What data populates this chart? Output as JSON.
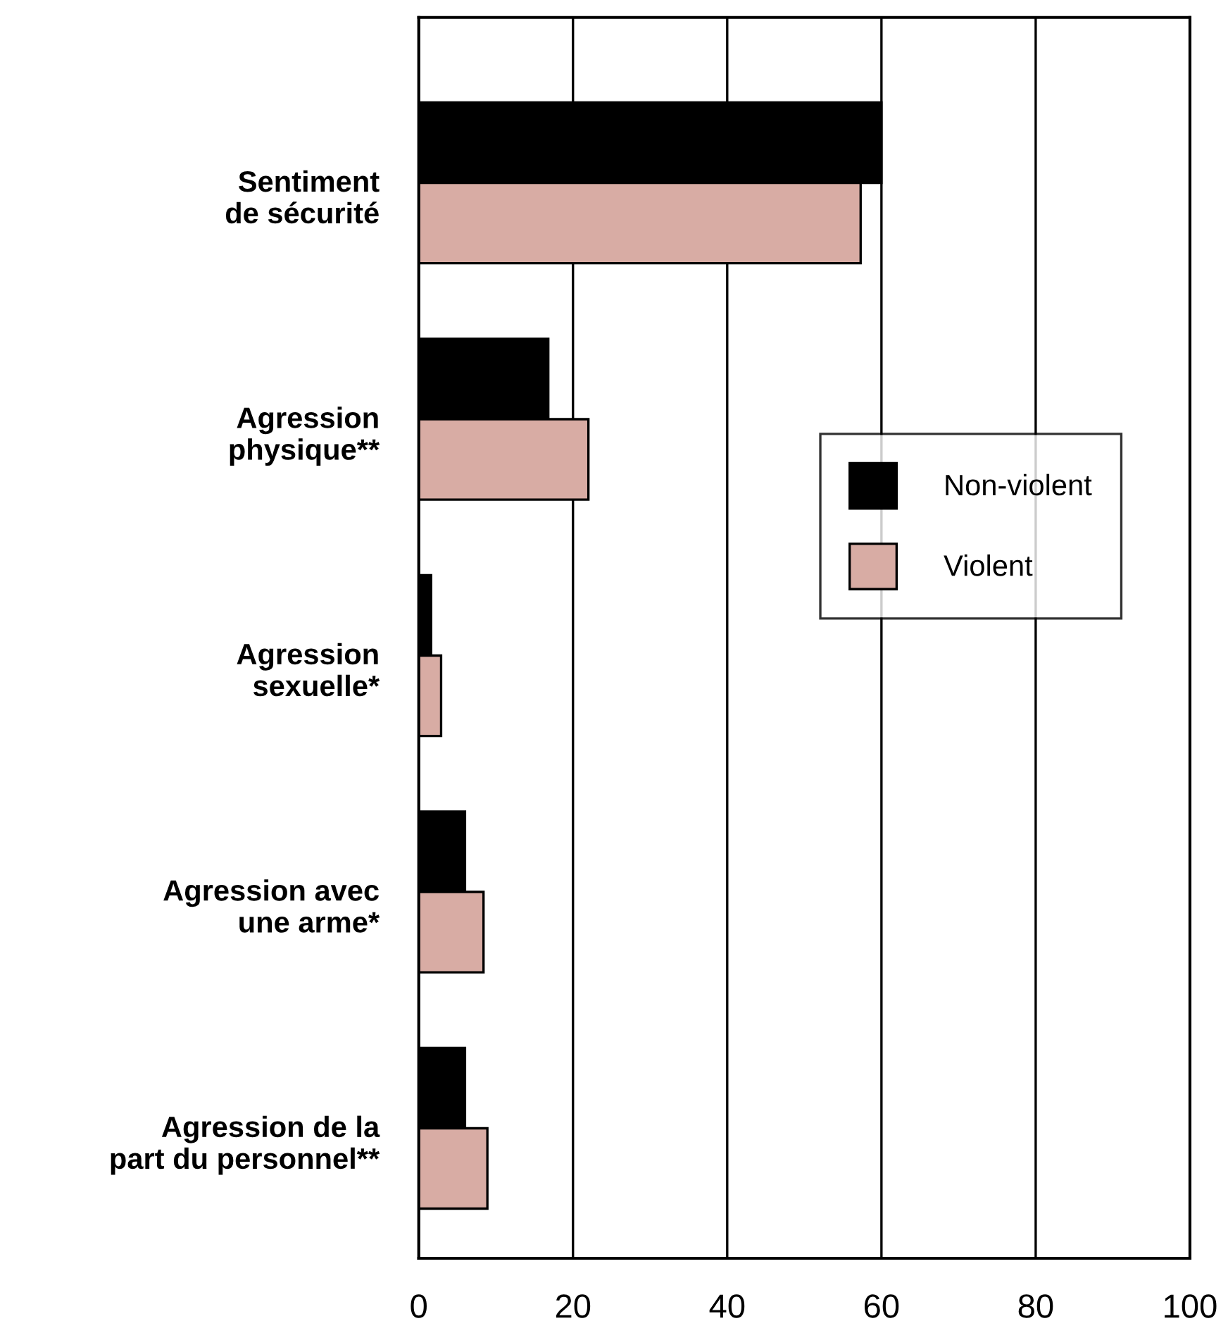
{
  "chart_data": {
    "type": "bar",
    "orientation": "horizontal",
    "categories": [
      "Sentiment\nde sécurité",
      "Agression\nphysique**",
      "Agression\nsexuelle*",
      "Agression avec\nune arme*",
      "Agression de la\npart du personnel**"
    ],
    "series": [
      {
        "name": "Non-violent",
        "color": "#000000",
        "values": [
          60,
          16.8,
          1.6,
          6,
          6
        ]
      },
      {
        "name": "Violent",
        "color": "#d8aca4",
        "values": [
          57.3,
          22,
          2.9,
          8.4,
          8.9
        ]
      }
    ],
    "xlim": [
      0,
      100
    ],
    "xticks": [
      0,
      20,
      40,
      60,
      80,
      100
    ],
    "grid": "x",
    "legend": "center right"
  }
}
